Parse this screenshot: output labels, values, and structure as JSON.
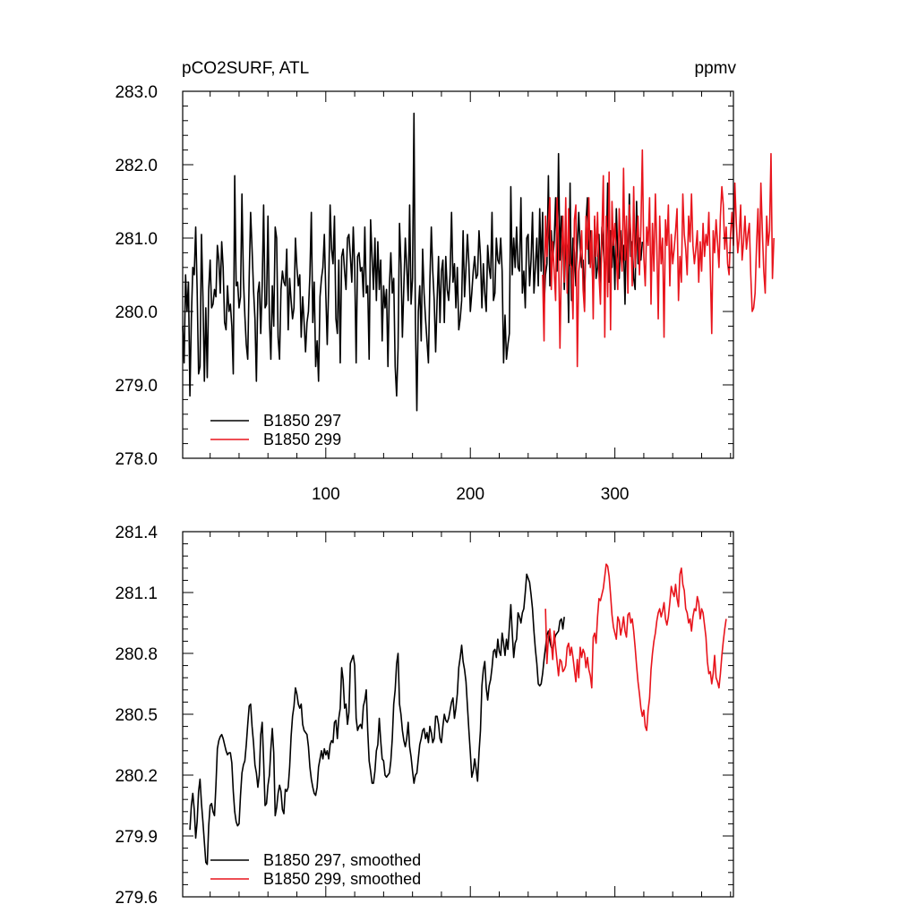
{
  "figure": {
    "title_left": "pCO2SURF, ATL",
    "title_right": "ppmv"
  },
  "colors": {
    "series_a": "#000000",
    "series_b": "#e8141c"
  },
  "chart_data": [
    {
      "type": "line",
      "title": "pCO2SURF, ATL",
      "units": "ppmv",
      "xlim": [
        1,
        382
      ],
      "ylim": [
        278.0,
        283.0
      ],
      "x_ticks": [
        100,
        200,
        300
      ],
      "x_tick_labels": [
        "100",
        "200",
        "300"
      ],
      "y_ticks": [
        278.0,
        279.0,
        280.0,
        281.0,
        282.0,
        283.0
      ],
      "y_tick_labels": [
        "278.0",
        "279.0",
        "280.0",
        "281.0",
        "282.0",
        "283.0"
      ],
      "legend": [
        "B1850 297",
        "B1850 299"
      ],
      "legend_position": "bottom-left",
      "series": [
        {
          "name": "B1850 297",
          "color": "#000000",
          "x_start": 1,
          "values": [
            279.8,
            279.3,
            280.5,
            280.0,
            280.4,
            278.85,
            279.9,
            280.6,
            280.5,
            281.15,
            280.3,
            279.15,
            279.25,
            281.05,
            280.2,
            279.05,
            280.05,
            279.1,
            280.3,
            280.7,
            280.05,
            280.1,
            280.3,
            280.2,
            280.9,
            280.7,
            280.25,
            280.95,
            280.6,
            279.85,
            279.75,
            280.35,
            280.0,
            280.1,
            279.8,
            279.15,
            281.85,
            280.35,
            280.4,
            280.05,
            280.2,
            281.6,
            280.45,
            279.95,
            279.55,
            279.35,
            280.45,
            281.35,
            280.85,
            280.3,
            279.9,
            279.05,
            280.25,
            280.4,
            279.7,
            280.35,
            281.45,
            280.05,
            280.1,
            281.3,
            279.9,
            279.35,
            280.35,
            279.8,
            281.15,
            281.0,
            279.65,
            279.35,
            280.3,
            280.55,
            280.4,
            280.35,
            280.85,
            279.75,
            280.45,
            280.15,
            279.9,
            280.05,
            281.0,
            280.6,
            280.35,
            280.5,
            279.65,
            280.2,
            279.85,
            279.45,
            279.85,
            280.0,
            280.5,
            281.35,
            279.85,
            280.4,
            279.25,
            279.6,
            279.05,
            280.2,
            280.45,
            280.6,
            281.05,
            280.25,
            279.55,
            280.35,
            281.45,
            280.85,
            280.65,
            281.3,
            279.9,
            279.7,
            280.7,
            279.3,
            280.75,
            280.85,
            280.55,
            280.3,
            281.0,
            281.05,
            280.75,
            280.4,
            281.15,
            280.6,
            279.3,
            280.75,
            280.8,
            280.55,
            280.6,
            280.2,
            281.15,
            280.25,
            280.35,
            279.35,
            281.25,
            280.75,
            280.3,
            281.0,
            280.15,
            280.95,
            280.3,
            280.7,
            279.6,
            280.35,
            280.05,
            280.3,
            279.25,
            280.35,
            280.8,
            280.25,
            280.45,
            279.25,
            278.85,
            279.5,
            281.2,
            280.65,
            279.65,
            280.35,
            281.0,
            280.6,
            280.15,
            281.45,
            280.1,
            280.45,
            282.7,
            279.85,
            278.65,
            280.0,
            280.35,
            279.6,
            280.85,
            280.25,
            279.9,
            279.6,
            279.3,
            280.4,
            281.15,
            280.55,
            280.15,
            279.45,
            280.15,
            280.75,
            279.85,
            280.55,
            280.7,
            279.85,
            280.75,
            280.3,
            280.15,
            280.5,
            281.35,
            280.4,
            280.65,
            280.05,
            280.6,
            279.75,
            279.9,
            280.15,
            281.1,
            280.2,
            280.6,
            281.05,
            280.65,
            280.0,
            280.25,
            280.55,
            280.75,
            280.45,
            280.5,
            281.1,
            280.75,
            280.05,
            280.65,
            280.25,
            280.0,
            280.9,
            280.6,
            280.45,
            281.35,
            280.15,
            280.25,
            281.0,
            280.7,
            280.65,
            281.0,
            280.55,
            279.3,
            279.95,
            279.35,
            279.55,
            279.7,
            281.7,
            280.5,
            281.0,
            280.6,
            281.15,
            280.6,
            280.55,
            281.55,
            280.25,
            280.55,
            280.05,
            281.0,
            281.05,
            280.35,
            280.7,
            281.35,
            280.25,
            280.6,
            281.0,
            280.35,
            281.4,
            280.55,
            281.35,
            280.05,
            280.5,
            280.65,
            281.85,
            280.35,
            281.1,
            280.7,
            280.95,
            281.55,
            280.55,
            282.15,
            280.7,
            281.3,
            281.0,
            280.3,
            280.95,
            280.85,
            279.85,
            281.75,
            280.15,
            281.0,
            280.8,
            280.35,
            280.9,
            281.35,
            280.85,
            280.6,
            280.7,
            280.05,
            281.2,
            281.55,
            280.65,
            281.1,
            280.8,
            280.25,
            281.25,
            280.45,
            280.6,
            281.05,
            280.35,
            281.15,
            280.85,
            280.55,
            280.7,
            281.75,
            280.4,
            281.1,
            280.6,
            281.05,
            280.3,
            281.4,
            280.75,
            280.45,
            281.1,
            280.65,
            280.9,
            280.1,
            281.2,
            280.55,
            281.6,
            280.75,
            280.95,
            280.45,
            280.3,
            281.5,
            280.65,
            281.0,
            280.7,
            280.95
          ]
        },
        {
          "name": "B1850 299",
          "color": "#e8141c",
          "x_start": 250,
          "values": [
            280.5,
            279.6,
            281.3,
            280.75,
            281.2,
            281.55,
            280.3,
            280.95,
            280.55,
            280.15,
            281.55,
            280.85,
            279.5,
            280.65,
            281.3,
            280.4,
            281.55,
            280.25,
            281.4,
            280.65,
            280.6,
            279.9,
            281.25,
            281.45,
            279.25,
            280.55,
            280.75,
            281.1,
            280.3,
            280.0,
            281.3,
            280.85,
            281.55,
            280.6,
            281.1,
            279.9,
            281.3,
            280.75,
            281.35,
            280.5,
            280.1,
            281.05,
            281.85,
            279.65,
            281.3,
            280.2,
            281.9,
            279.75,
            281.5,
            280.9,
            281.2,
            280.75,
            280.3,
            281.4,
            280.85,
            280.55,
            281.95,
            280.7,
            281.3,
            280.25,
            281.45,
            281.05,
            280.35,
            281.7,
            280.6,
            280.95,
            281.3,
            280.5,
            281.15,
            282.2,
            280.75,
            280.35,
            281.15,
            280.9,
            281.55,
            280.1,
            281.2,
            280.55,
            281.6,
            280.9,
            279.9,
            281.3,
            280.65,
            281.0,
            279.65,
            281.25,
            280.9,
            281.45,
            280.35,
            281.05,
            280.65,
            280.85,
            281.1,
            281.4,
            280.15,
            280.75,
            280.4,
            281.6,
            281.05,
            280.85,
            280.5,
            281.3,
            280.95,
            281.6,
            280.9,
            280.65,
            280.85,
            281.1,
            280.4,
            280.95,
            280.55,
            281.2,
            280.75,
            281.05,
            280.9,
            281.35,
            280.6,
            279.7,
            281.1,
            280.8,
            281.25,
            280.95,
            280.6,
            281.3,
            281.7,
            281.45,
            280.85,
            281.15,
            280.65,
            280.5,
            281.05,
            281.35,
            280.9,
            281.75,
            281.2,
            280.8,
            281.0,
            281.45,
            280.7,
            280.95,
            281.3,
            280.85,
            281.05,
            281.2,
            280.5,
            280.0,
            280.05,
            280.25,
            280.9,
            281.4,
            280.6,
            281.75,
            281.1,
            280.55,
            280.25,
            281.3,
            280.9,
            281.1,
            282.15,
            280.45,
            281.0
          ]
        }
      ]
    },
    {
      "type": "line",
      "title": "",
      "xlim": [
        1,
        382
      ],
      "ylim": [
        279.6,
        281.4
      ],
      "x_ticks": [
        100,
        200,
        300
      ],
      "y_ticks": [
        279.6,
        279.9,
        280.2,
        280.5,
        280.8,
        281.1,
        281.4
      ],
      "y_tick_labels": [
        "279.6",
        "279.9",
        "280.2",
        "280.5",
        "280.8",
        "281.1",
        "281.4"
      ],
      "legend": [
        "B1850 297, smoothed",
        "B1850 299, smoothed"
      ],
      "legend_position": "bottom-left",
      "series": [
        {
          "name": "B1850 297, smoothed",
          "color": "#000000",
          "x_start": 6,
          "values": [
            279.93,
            280.05,
            280.11,
            280.03,
            279.89,
            279.97,
            280.12,
            280.18,
            280.06,
            279.97,
            279.87,
            279.77,
            279.76,
            279.95,
            280.05,
            280.06,
            280.02,
            280.0,
            280.15,
            280.33,
            280.37,
            280.39,
            280.4,
            280.38,
            280.35,
            280.32,
            280.3,
            280.31,
            280.31,
            280.26,
            280.12,
            280.02,
            279.97,
            279.95,
            279.96,
            280.1,
            280.21,
            280.25,
            280.27,
            280.35,
            280.45,
            280.54,
            280.55,
            280.44,
            280.36,
            280.25,
            280.21,
            280.14,
            280.2,
            280.4,
            280.46,
            280.27,
            280.05,
            280.06,
            280.15,
            280.2,
            280.33,
            280.43,
            280.31,
            280.0,
            280.04,
            280.11,
            280.15,
            280.12,
            280.03,
            280.01,
            280.13,
            280.12,
            280.14,
            280.24,
            280.39,
            280.49,
            280.54,
            280.63,
            280.6,
            280.55,
            280.53,
            280.55,
            280.45,
            280.42,
            280.41,
            280.4,
            280.34,
            280.24,
            280.18,
            280.14,
            280.11,
            280.1,
            280.14,
            280.24,
            280.28,
            280.32,
            280.28,
            280.33,
            280.3,
            280.32,
            280.28,
            280.35,
            280.37,
            280.36,
            280.46,
            280.47,
            280.38,
            280.48,
            280.53,
            280.73,
            280.67,
            280.53,
            280.55,
            280.45,
            280.51,
            280.75,
            280.77,
            280.79,
            280.74,
            280.48,
            280.42,
            280.44,
            280.45,
            280.43,
            280.54,
            280.57,
            280.62,
            280.42,
            280.27,
            280.22,
            280.16,
            280.16,
            280.22,
            280.32,
            280.35,
            280.48,
            280.37,
            280.28,
            280.27,
            280.2,
            280.19,
            280.2,
            280.21,
            280.27,
            280.38,
            280.55,
            280.62,
            280.75,
            280.8,
            280.55,
            280.5,
            280.42,
            280.37,
            280.34,
            280.38,
            280.46,
            280.34,
            280.29,
            280.22,
            280.16,
            280.2,
            280.21,
            280.28,
            280.35,
            280.38,
            280.42,
            280.43,
            280.38,
            280.41,
            280.36,
            280.44,
            280.41,
            280.36,
            280.38,
            280.49,
            280.49,
            280.45,
            280.38,
            280.36,
            280.44,
            280.5,
            280.47,
            280.46,
            280.48,
            280.52,
            280.56,
            280.58,
            280.48,
            280.53,
            280.6,
            280.73,
            280.78,
            280.84,
            280.76,
            280.72,
            280.66,
            280.54,
            280.42,
            280.31,
            280.19,
            280.22,
            280.28,
            280.23,
            280.17,
            280.31,
            280.42,
            280.64,
            280.72,
            280.76,
            280.63,
            280.57,
            280.64,
            280.67,
            280.73,
            280.81,
            280.82,
            280.78,
            280.87,
            280.81,
            280.79,
            280.9,
            280.85,
            280.79,
            280.87,
            280.82,
            280.93,
            281.04,
            280.9,
            280.78,
            280.85,
            280.87,
            281.0,
            280.98,
            280.95,
            281.0,
            281.02,
            281.1,
            281.19,
            281.17,
            281.15,
            281.09,
            281.02,
            280.91,
            280.82,
            280.75,
            280.65,
            280.64,
            280.65,
            280.7,
            280.77,
            280.83,
            280.89,
            280.91,
            280.86,
            280.83,
            280.82,
            280.86,
            280.89,
            280.9,
            280.91,
            280.96,
            280.97,
            280.92,
            280.98
          ]
        },
        {
          "name": "B1850 299, smoothed",
          "color": "#e8141c",
          "x_start": 252,
          "values": [
            281.02,
            280.75,
            280.88,
            280.92,
            280.85,
            280.77,
            280.91,
            280.83,
            280.76,
            280.69,
            280.77,
            280.76,
            280.71,
            280.72,
            280.74,
            280.83,
            280.85,
            280.79,
            280.83,
            280.78,
            280.72,
            280.66,
            280.77,
            280.68,
            280.83,
            280.78,
            280.82,
            280.8,
            280.73,
            280.78,
            280.72,
            280.69,
            280.63,
            280.88,
            280.9,
            280.85,
            280.98,
            281.07,
            281.06,
            281.09,
            281.12,
            281.18,
            281.24,
            281.23,
            281.18,
            281.09,
            280.99,
            280.93,
            280.9,
            280.87,
            280.98,
            280.96,
            280.89,
            280.93,
            280.98,
            280.91,
            280.88,
            280.99,
            281.0,
            280.95,
            280.97,
            280.91,
            280.83,
            280.74,
            280.66,
            280.6,
            280.53,
            280.49,
            280.52,
            280.44,
            280.42,
            280.52,
            280.58,
            280.72,
            280.8,
            280.86,
            280.9,
            280.96,
            281.0,
            281.02,
            280.98,
            281.01,
            281.05,
            280.97,
            280.94,
            280.98,
            281.05,
            281.13,
            281.1,
            281.08,
            281.14,
            281.07,
            281.03,
            281.19,
            281.22,
            281.14,
            281.11,
            281.02,
            281.0,
            280.95,
            280.97,
            280.91,
            280.98,
            281.02,
            281.01,
            281.08,
            281.05,
            280.97,
            281.02,
            281.0,
            280.94,
            280.88,
            280.76,
            280.7,
            280.71,
            280.65,
            280.7,
            280.79,
            280.68,
            280.66,
            280.63,
            280.7,
            280.79,
            280.86,
            280.92,
            280.97
          ]
        }
      ]
    }
  ]
}
